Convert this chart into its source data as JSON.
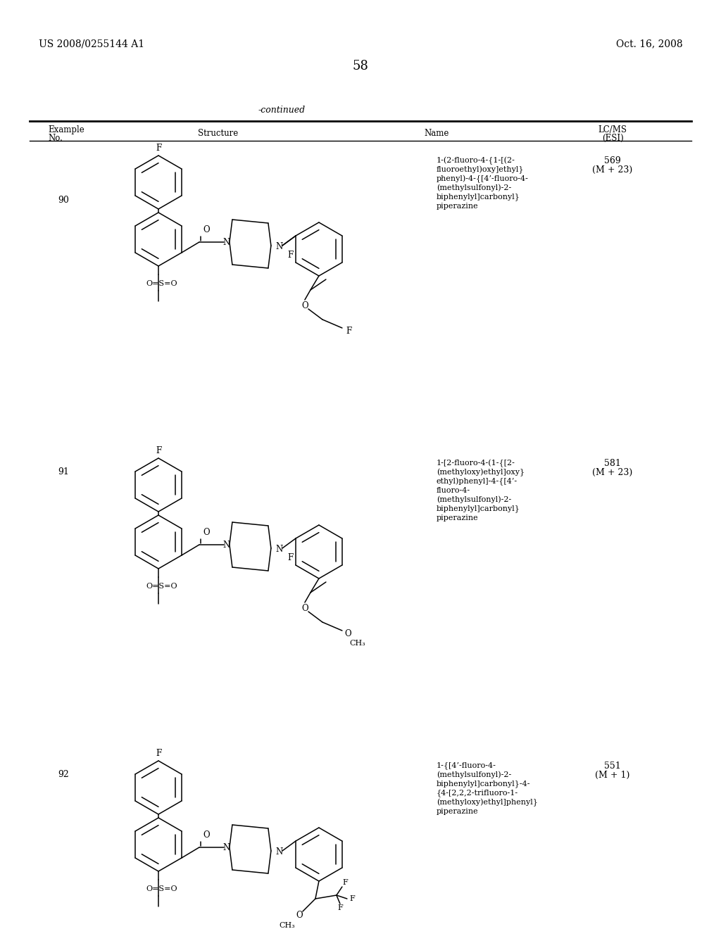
{
  "page_number": "58",
  "patent_left": "US 2008/0255144 A1",
  "patent_right": "Oct. 16, 2008",
  "continued_label": "-continued",
  "rows": [
    {
      "example_no": "90",
      "name_lines": [
        "1-(2-fluoro-4-{1-[(2-",
        "fluoroethyl)oxy]ethyl}",
        "phenyl)-4-{[4’-fluoro-4-",
        "(methylsulfonyl)-2-",
        "biphenylyl]carbonyl}",
        "piperazine"
      ],
      "lcms": "569",
      "lcms2": "(M + 23)"
    },
    {
      "example_no": "91",
      "name_lines": [
        "1-[2-fluoro-4-(1-{[2-",
        "(methyloxy)ethyl]oxy}",
        "ethyl)phenyl]-4-{[4’-",
        "fluoro-4-",
        "(methylsulfonyl)-2-",
        "biphenylyl]carbonyl}",
        "piperazine"
      ],
      "lcms": "581",
      "lcms2": "(M + 23)"
    },
    {
      "example_no": "92",
      "name_lines": [
        "1-{[4’-fluoro-4-",
        "(methylsulfonyl)-2-",
        "biphenylyl]carbonyl}-4-",
        "{4-[2,2,2-trifluoro-1-",
        "(methyloxy)ethyl]phenyl}",
        "piperazine"
      ],
      "lcms": "551",
      "lcms2": "(M + 1)"
    }
  ],
  "bg_color": "#ffffff",
  "text_color": "#000000"
}
